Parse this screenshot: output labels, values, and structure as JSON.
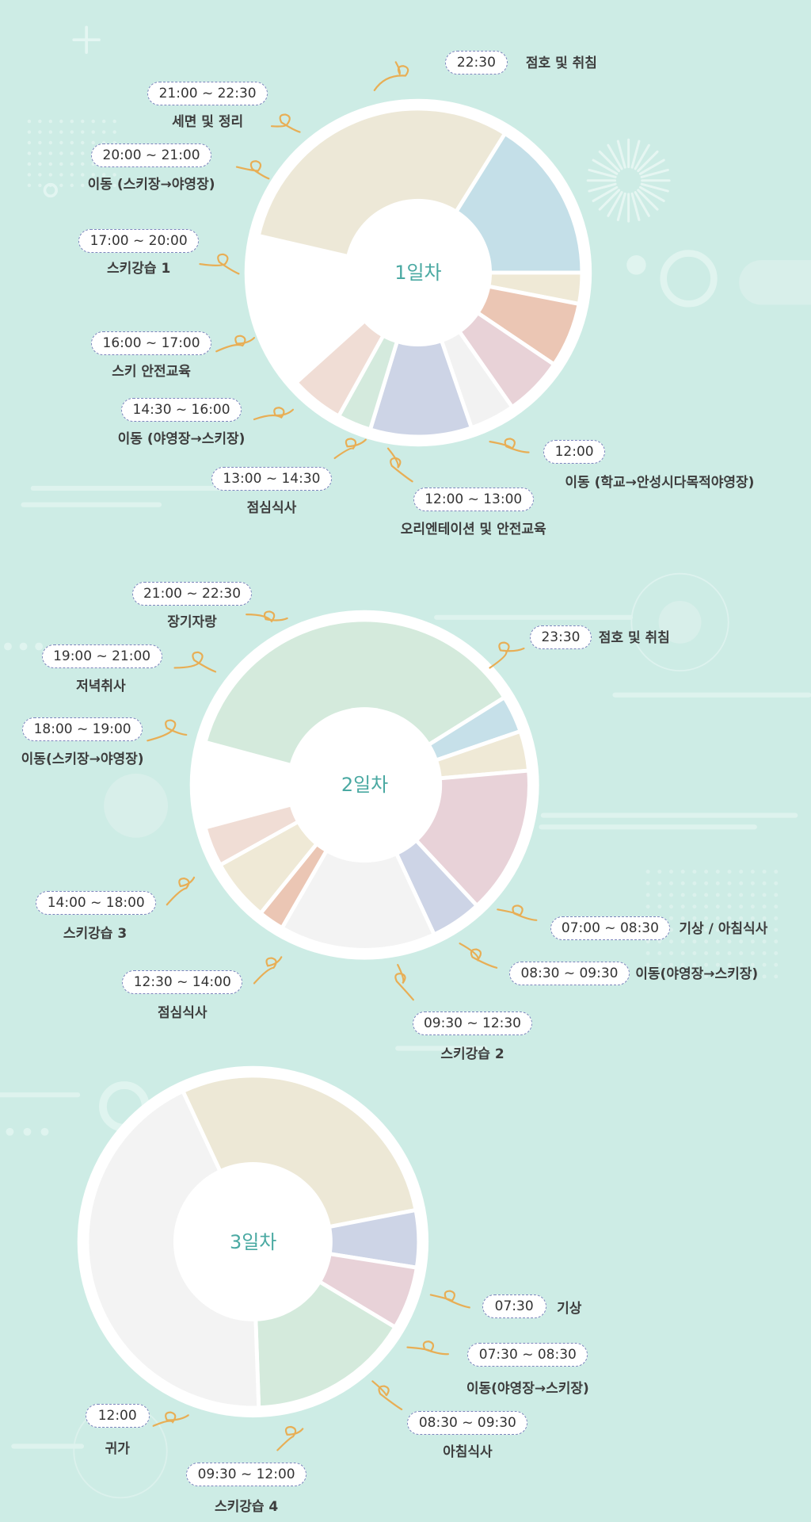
{
  "days": [
    {
      "title": "1일차",
      "segments": [
        {
          "color": "#ede8d7"
        },
        {
          "color": "#c4dfe8"
        },
        {
          "color": "#efe9d6"
        },
        {
          "color": "#ebc6b4"
        },
        {
          "color": "#e8d2d7"
        },
        {
          "color": "#f2f2f2"
        },
        {
          "color": "#cdd4e6"
        },
        {
          "color": "#d4eadd"
        },
        {
          "color": "#f0ddd5"
        }
      ],
      "events": [
        {
          "time": "22:30",
          "name": "점호 및 취침"
        },
        {
          "time": "21:00 ~ 22:30",
          "name": "세면 및 정리"
        },
        {
          "time": "20:00 ~ 21:00",
          "name": "이동 (스키장→야영장)"
        },
        {
          "time": "17:00 ~ 20:00",
          "name": "스키강습 1"
        },
        {
          "time": "16:00 ~ 17:00",
          "name": "스키 안전교육"
        },
        {
          "time": "14:30 ~ 16:00",
          "name": "이동 (야영장→스키장)"
        },
        {
          "time": "13:00 ~ 14:30",
          "name": "점심식사"
        },
        {
          "time": "12:00 ~ 13:00",
          "name": "오리엔테이션 및 안전교육"
        },
        {
          "time": "12:00",
          "name": "이동 (학교→안성시다목적야영장)"
        }
      ]
    },
    {
      "title": "2일차",
      "segments": [
        {
          "color": "#d4eadc"
        },
        {
          "color": "#c6e0e9"
        },
        {
          "color": "#efe9d6"
        },
        {
          "color": "#e8d2d8"
        },
        {
          "color": "#cdd4e6"
        },
        {
          "color": "#f3f3f3"
        },
        {
          "color": "#ebc6b4"
        },
        {
          "color": "#efe9d6"
        },
        {
          "color": "#f0ddd5"
        }
      ],
      "events": [
        {
          "time": "21:00 ~ 22:30",
          "name": "장기자랑"
        },
        {
          "time": "23:30",
          "name": "점호 및 취침"
        },
        {
          "time": "19:00 ~ 21:00",
          "name": "저녁취사"
        },
        {
          "time": "18:00 ~ 19:00",
          "name": "이동(스키장→야영장)"
        },
        {
          "time": "14:00 ~ 18:00",
          "name": "스키강습 3"
        },
        {
          "time": "07:00 ~ 08:30",
          "name": "기상 / 아침식사"
        },
        {
          "time": "08:30 ~ 09:30",
          "name": "이동(야영장→스키장)"
        },
        {
          "time": "12:30 ~ 14:00",
          "name": "점심식사"
        },
        {
          "time": "09:30 ~ 12:30",
          "name": "스키강습 2"
        }
      ]
    },
    {
      "title": "3일차",
      "segments": [
        {
          "color": "#ede8d6"
        },
        {
          "color": "#cdd4e6"
        },
        {
          "color": "#e8d2d8"
        },
        {
          "color": "#d4eadc"
        },
        {
          "color": "#f3f3f3"
        }
      ],
      "events": [
        {
          "time": "07:30",
          "name": "기상"
        },
        {
          "time": "07:30 ~ 08:30",
          "name": "이동(야영장→스키장)"
        },
        {
          "time": "08:30 ~ 09:30",
          "name": "아침식사"
        },
        {
          "time": "12:00",
          "name": "귀가"
        },
        {
          "time": "09:30 ~ 12:00",
          "name": "스키강습 4"
        }
      ]
    }
  ],
  "colors": {
    "background": "#cdece5",
    "connector": "#e8ae55",
    "pill_border": "#7d86bd",
    "day_title": "#4aa9a2"
  }
}
